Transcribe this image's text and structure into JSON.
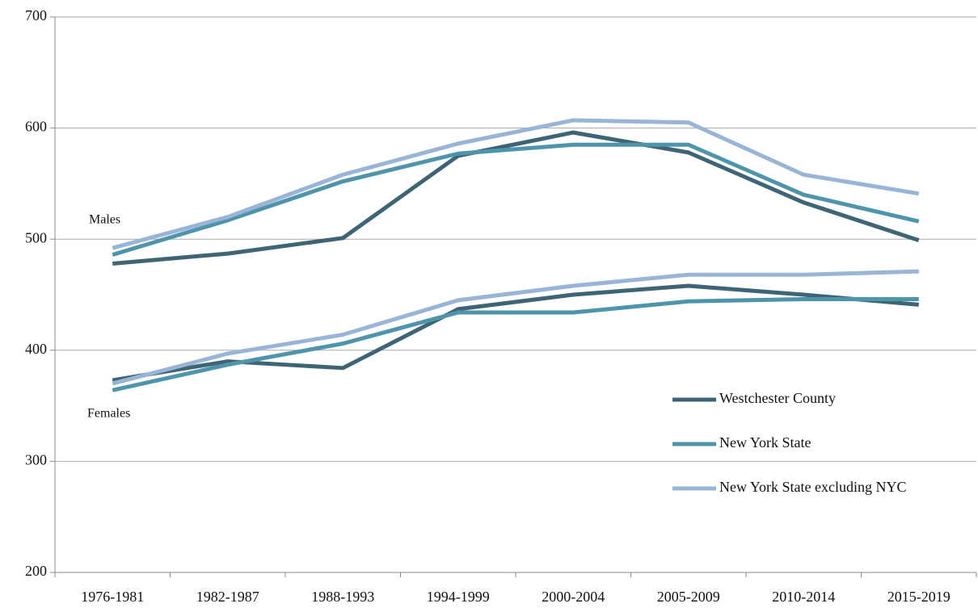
{
  "chart_data": {
    "type": "line",
    "categories": [
      "1976-1981",
      "1982-1987",
      "1988-1993",
      "1994-1999",
      "2000-2004",
      "2005-2009",
      "2010-2014",
      "2015-2019"
    ],
    "groups": [
      "Males",
      "Females"
    ],
    "series": [
      {
        "name": "Westchester County",
        "color": "#3d6575",
        "values": [
          [
            478,
            487,
            501,
            575,
            596,
            578,
            533,
            499
          ],
          [
            373,
            390,
            384,
            437,
            450,
            458,
            450,
            441
          ]
        ]
      },
      {
        "name": "New York State",
        "color": "#4e95ab",
        "values": [
          [
            486,
            517,
            552,
            577,
            585,
            585,
            540,
            516
          ],
          [
            364,
            387,
            406,
            434,
            434,
            444,
            446,
            446
          ]
        ]
      },
      {
        "name": "New York State excluding NYC",
        "color": "#98b4d6",
        "values": [
          [
            492,
            520,
            558,
            586,
            607,
            605,
            558,
            541
          ],
          [
            370,
            397,
            414,
            445,
            458,
            468,
            468,
            471
          ]
        ]
      }
    ],
    "ylim": [
      200,
      700
    ],
    "yticks": [
      200,
      300,
      400,
      500,
      600,
      700
    ],
    "grid": true,
    "legend": "lower right"
  }
}
